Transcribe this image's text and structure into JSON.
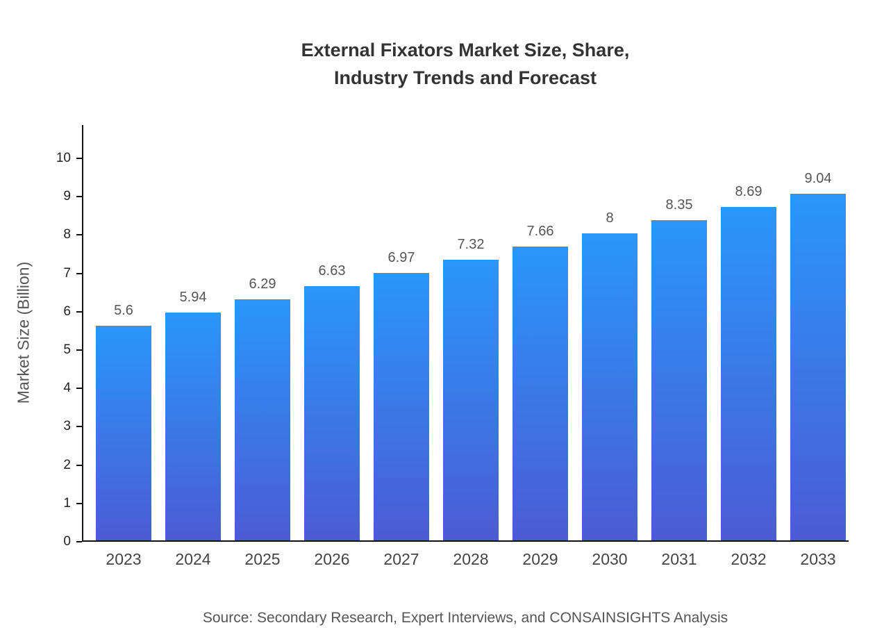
{
  "title": "External Fixators Market Size, Share,\nIndustry Trends and Forecast",
  "source": "Source: Secondary Research, Expert Interviews, and CONSAINSIGHTS Analysis",
  "chart_data": {
    "type": "bar",
    "title": "External Fixators Market Size, Share, Industry Trends and Forecast",
    "categories": [
      "2023",
      "2024",
      "2025",
      "2026",
      "2027",
      "2028",
      "2029",
      "2030",
      "2031",
      "2032",
      "2033"
    ],
    "values": [
      5.6,
      5.94,
      6.29,
      6.63,
      6.97,
      7.32,
      7.66,
      8,
      8.35,
      8.69,
      9.04
    ],
    "xlabel": "",
    "ylabel": "Market Size (Billion)",
    "ylim": [
      0,
      10
    ],
    "ytick_step": 1,
    "grid": false,
    "legend": false,
    "colors": {
      "bar_top": "#2997fa",
      "bar_bottom": "#4c5bd4",
      "axis": "#111111",
      "title_text": "#333333",
      "label_text": "#555555"
    }
  }
}
